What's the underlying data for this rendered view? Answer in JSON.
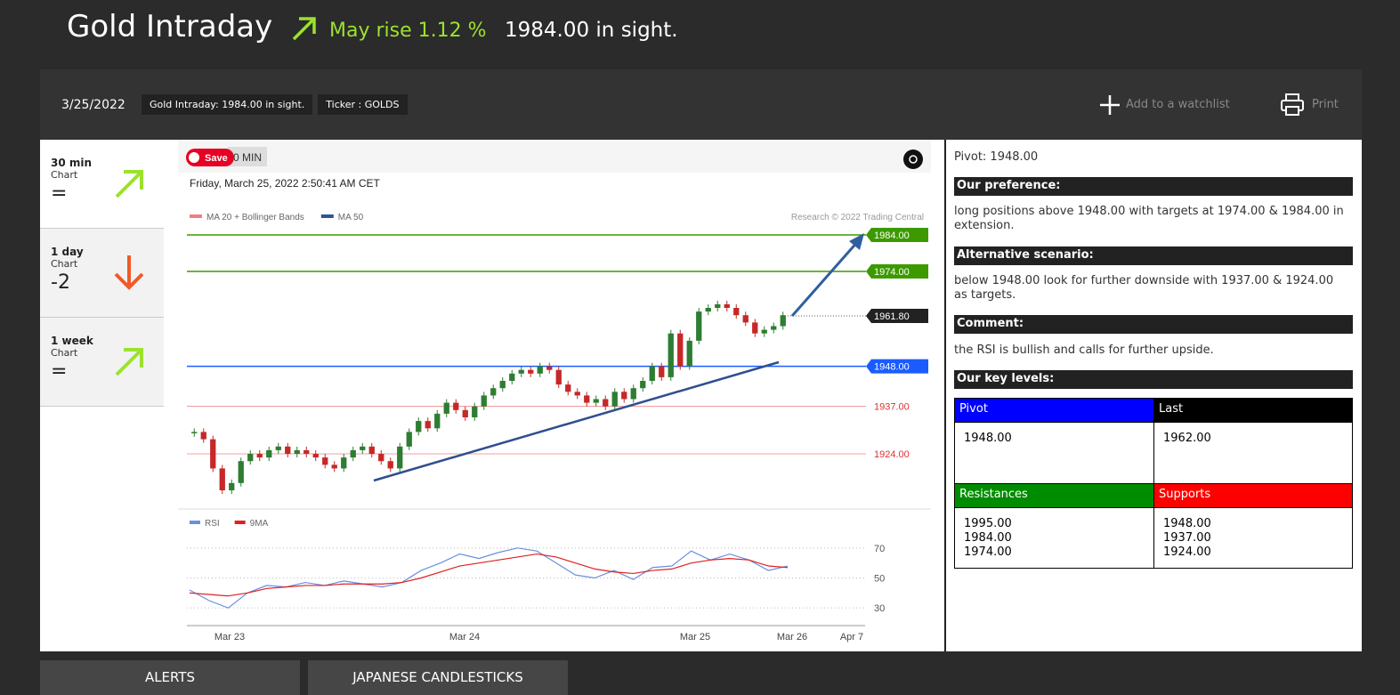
{
  "header": {
    "title": "Gold Intraday",
    "outlook": "May rise 1.12 %",
    "note": "1984.00 in sight."
  },
  "toolbar": {
    "date": "3/25/2022",
    "tags": [
      "Gold Intraday: 1984.00 in sight.",
      "Ticker : GOLDS"
    ],
    "watchlist": "Add to a watchlist",
    "print": "Print"
  },
  "timeframes": [
    {
      "label": "30 min",
      "sub": "Chart",
      "value": "="
    },
    {
      "label": "1 day",
      "sub": "Chart",
      "value": "-2"
    },
    {
      "label": "1 week",
      "sub": "Chart",
      "value": "="
    }
  ],
  "chart": {
    "save": "Save",
    "interval": "0 MIN",
    "timestamp": "Friday, March 25, 2022 2:50:41 AM CET",
    "legend": [
      {
        "name": "MA 20 + Bollinger Bands",
        "color": "#f08080"
      },
      {
        "name": "MA 50",
        "color": "#2f5597"
      }
    ],
    "credit": "Research © 2022 Trading Central",
    "ylim": [
      1910,
      2000
    ],
    "levels": [
      {
        "value": 1984,
        "label": "1984.00",
        "color": "#3c9a00",
        "boxed": true
      },
      {
        "value": 1974,
        "label": "1974.00",
        "color": "#3c9a00",
        "boxed": true
      },
      {
        "value": 1961.8,
        "label": "1961.80",
        "color": "#222222",
        "boxed": true
      },
      {
        "value": 1948,
        "label": "1948.00",
        "color": "#1a5cff",
        "boxed": true
      },
      {
        "value": 1937,
        "label": "1937.00",
        "color": "#e03030",
        "boxed": false
      },
      {
        "value": 1924,
        "label": "1924.00",
        "color": "#e03030",
        "boxed": false
      }
    ],
    "closes": [
      1930,
      1928,
      1920,
      1914,
      1916,
      1922,
      1924,
      1923,
      1925,
      1926,
      1924,
      1925,
      1924,
      1923,
      1921,
      1920,
      1923,
      1925,
      1926,
      1924,
      1922,
      1920,
      1926,
      1930,
      1933,
      1931,
      1935,
      1938,
      1936,
      1934,
      1937,
      1940,
      1942,
      1944,
      1946,
      1947,
      1946,
      1948,
      1947,
      1943,
      1941,
      1940,
      1938,
      1939,
      1937,
      1941,
      1939,
      1942,
      1944,
      1948,
      1945,
      1957,
      1948,
      1955,
      1963,
      1964,
      1965,
      1964,
      1962,
      1960,
      1957,
      1958,
      1959,
      1962
    ],
    "rsi": {
      "ylim": [
        20,
        80
      ],
      "yticks": [
        70,
        50,
        30
      ],
      "series": [
        {
          "name": "RSI",
          "color": "#6a8fe0",
          "values": [
            42,
            35,
            30,
            40,
            45,
            44,
            47,
            45,
            48,
            46,
            44,
            47,
            55,
            60,
            66,
            63,
            67,
            70,
            68,
            60,
            52,
            50,
            55,
            49,
            57,
            58,
            68,
            62,
            66,
            62,
            55,
            58
          ]
        },
        {
          "name": "9MA",
          "color": "#e02020",
          "values": [
            40,
            39,
            38,
            40,
            43,
            44,
            45,
            45,
            46,
            46,
            46,
            47,
            50,
            54,
            58,
            60,
            62,
            64,
            66,
            64,
            60,
            56,
            54,
            53,
            55,
            56,
            60,
            62,
            63,
            62,
            58,
            57
          ]
        }
      ]
    },
    "dates": [
      "Mar 23",
      "Mar 24",
      "Mar 25",
      "Mar 26",
      "Apr 7"
    ]
  },
  "analysis": {
    "pivot": "Pivot: 1948.00",
    "sections": [
      {
        "heading": "Our preference:",
        "text": "long positions above 1948.00 with targets at 1974.00 & 1984.00 in extension."
      },
      {
        "heading": "Alternative scenario:",
        "text": "below 1948.00 look for further downside with 1937.00 & 1924.00 as targets."
      },
      {
        "heading": "Comment:",
        "text": "the RSI is bullish and calls for further upside."
      }
    ],
    "key_levels": "Our key levels:",
    "table": {
      "pivot_head": "Pivot",
      "last_head": "Last",
      "pivot": "1948.00",
      "last": "1962.00",
      "res_head": "Resistances",
      "sup_head": "Supports",
      "resistances": [
        "1995.00",
        "1984.00",
        "1974.00"
      ],
      "supports": [
        "1948.00",
        "1937.00",
        "1924.00"
      ]
    }
  },
  "tabs": [
    "ALERTS",
    "JAPANESE CANDLESTICKS"
  ]
}
